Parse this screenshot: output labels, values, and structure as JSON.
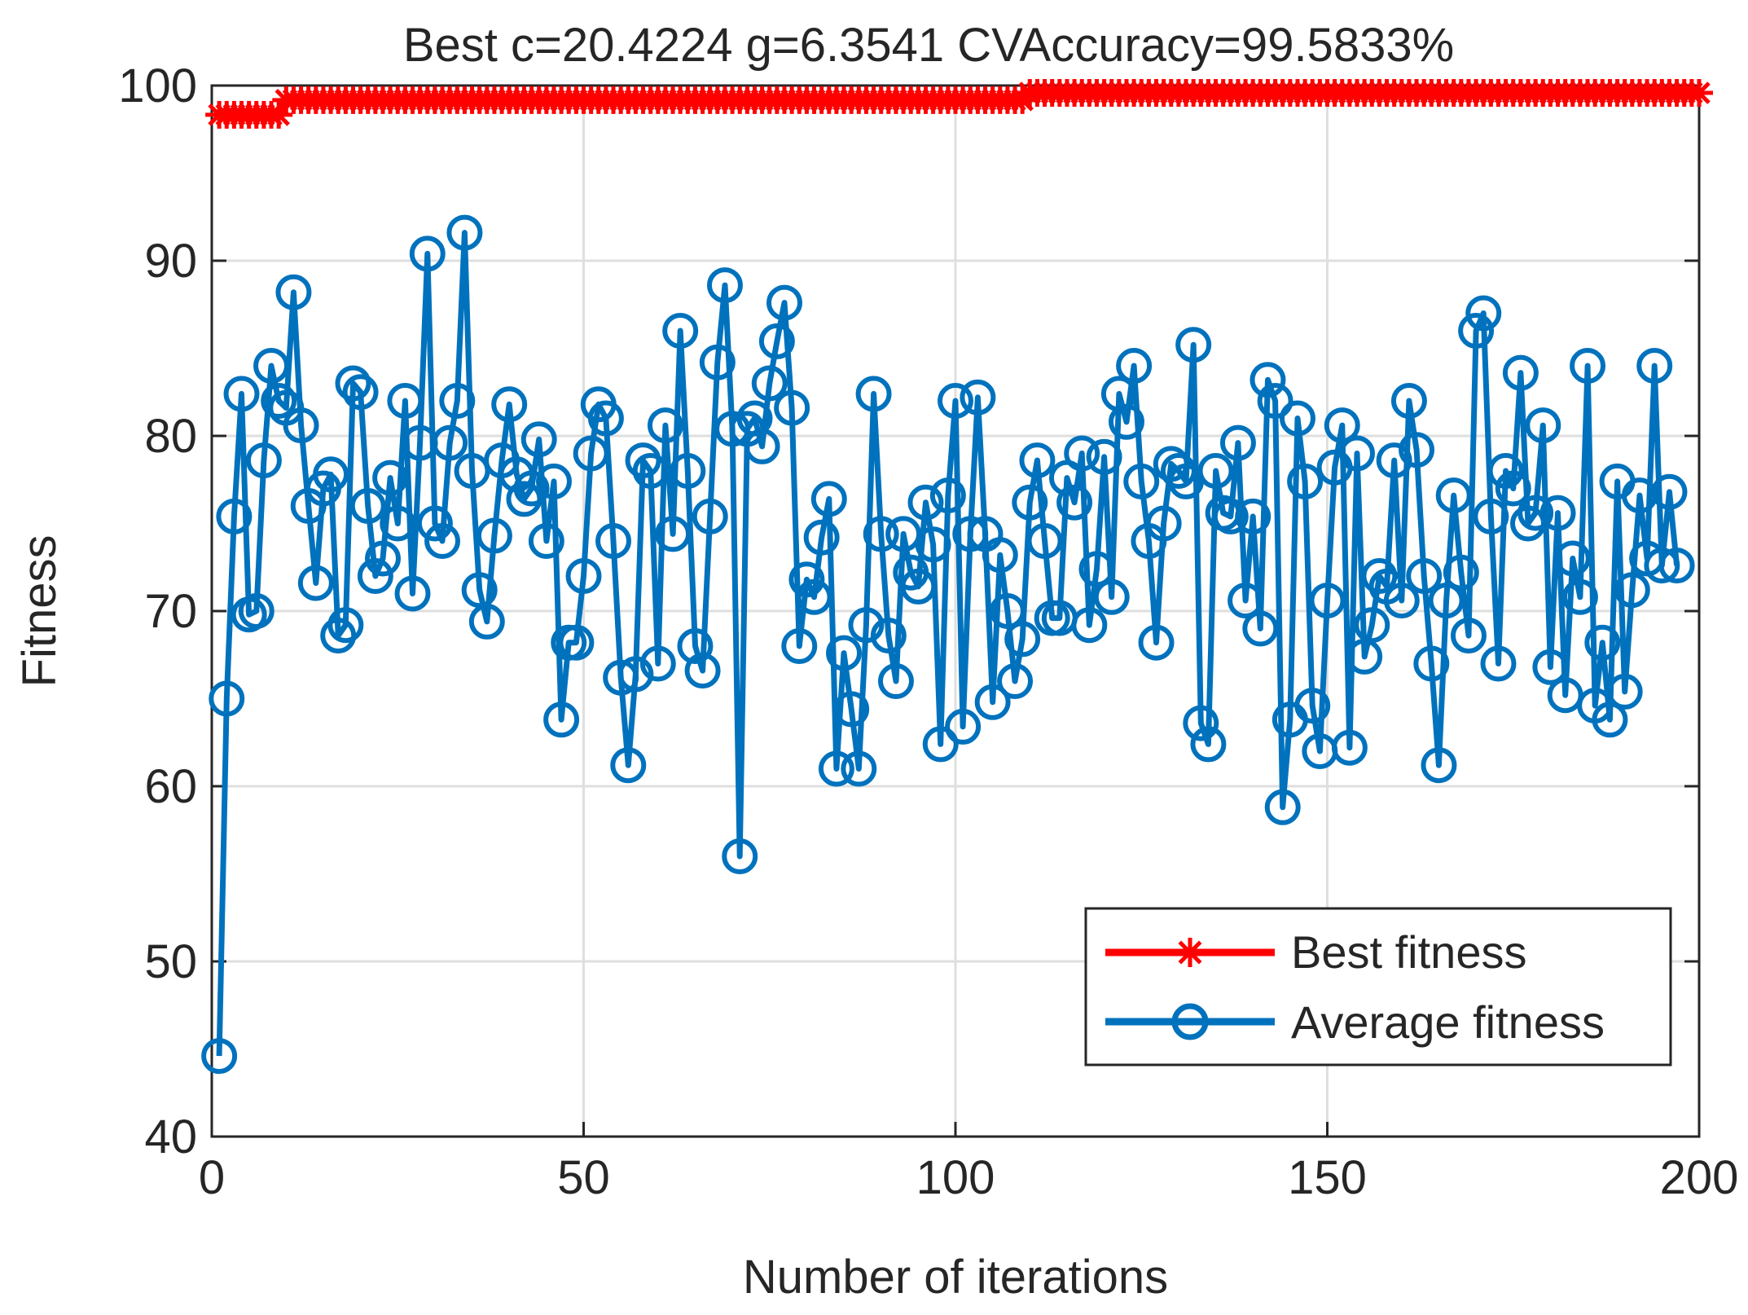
{
  "chart_data": {
    "type": "line",
    "title": "Best c=20.4224 g=6.3541 CVAccuracy=99.5833%",
    "xlabel": "Number of iterations",
    "ylabel": "Fitness",
    "xlim": [
      0,
      200
    ],
    "ylim": [
      40,
      100
    ],
    "xticks": [
      "0",
      "50",
      "100",
      "150",
      "200"
    ],
    "yticks": [
      "40",
      "50",
      "60",
      "70",
      "80",
      "90",
      "100"
    ],
    "xtick_values": [
      0,
      50,
      100,
      150,
      200
    ],
    "ytick_values": [
      40,
      50,
      60,
      70,
      80,
      90,
      100
    ],
    "grid": true,
    "legend_position": "bottom-right",
    "colors": {
      "best": "#ff0000",
      "average": "#0072bd",
      "grid": "#dfdfdf",
      "axis": "#262626"
    },
    "series": [
      {
        "name": "Best fitness",
        "marker": "asterisk",
        "segments": [
          {
            "x_from": 1,
            "x_to": 9,
            "value": 98.33
          },
          {
            "x_from": 10,
            "x_to": 109,
            "value": 99.17
          },
          {
            "x_from": 110,
            "x_to": 200,
            "value": 99.58
          }
        ]
      },
      {
        "name": "Average fitness",
        "marker": "circle",
        "values": [
          44.6,
          65.0,
          75.4,
          82.4,
          69.8,
          70.0,
          78.6,
          84.0,
          82.0,
          81.6,
          88.2,
          80.6,
          76.0,
          71.6,
          77.0,
          77.8,
          68.6,
          69.2,
          83.0,
          82.5,
          76.0,
          72.0,
          73.0,
          77.6,
          75.0,
          82.0,
          71.0,
          79.6,
          90.4,
          75.0,
          74.0,
          79.6,
          82.0,
          91.6,
          78.0,
          71.2,
          69.4,
          74.3,
          78.6,
          81.8,
          77.8,
          76.4,
          77.0,
          79.8,
          74.0,
          77.4,
          63.8,
          68.2,
          68.2,
          72.0,
          79.0,
          81.8,
          81.0,
          74.0,
          66.2,
          61.2,
          66.4,
          78.6,
          78.0,
          67.0,
          80.6,
          74.4,
          86.0,
          78.0,
          68.0,
          66.6,
          75.4,
          84.2,
          88.6,
          80.4,
          56.0,
          80.4,
          81.0,
          79.4,
          83.0,
          85.4,
          87.6,
          81.6,
          68.0,
          71.8,
          70.8,
          74.2,
          76.4,
          61.0,
          67.6,
          64.4,
          61.0,
          69.2,
          82.4,
          74.4,
          68.6,
          66.0,
          74.4,
          72.2,
          71.4,
          76.2,
          73.8,
          62.4,
          76.6,
          82.0,
          63.4,
          74.4,
          82.2,
          74.4,
          64.8,
          73.2,
          70.0,
          66.0,
          68.4,
          76.2,
          78.6,
          74.0,
          69.6,
          69.6,
          77.6,
          76.2,
          79.0,
          69.2,
          72.4,
          78.8,
          70.8,
          82.4,
          80.8,
          84.0,
          77.4,
          74.0,
          68.2,
          75.0,
          78.4,
          78.0,
          77.4,
          85.2,
          63.6,
          62.4,
          78.0,
          75.6,
          75.4,
          79.6,
          70.6,
          75.4,
          69.0,
          83.2,
          82.0,
          58.8,
          63.8,
          81.0,
          77.4,
          64.6,
          62.0,
          70.6,
          78.2,
          80.6,
          62.2,
          79.0,
          67.4,
          69.2,
          72.0,
          71.4,
          78.6,
          70.6,
          82.0,
          79.2,
          72.0,
          67.0,
          61.2,
          70.6,
          76.6,
          72.2,
          68.6,
          86.0,
          87.0,
          75.4,
          67.0,
          78.0,
          77.0,
          83.6,
          75.0,
          75.6,
          80.6,
          66.8,
          75.6,
          65.2,
          73.0,
          70.8,
          84.0,
          64.6,
          68.2,
          63.8,
          77.4,
          65.4,
          71.2,
          76.6,
          73.0,
          84.0,
          72.6,
          76.8,
          72.6
        ]
      }
    ]
  }
}
